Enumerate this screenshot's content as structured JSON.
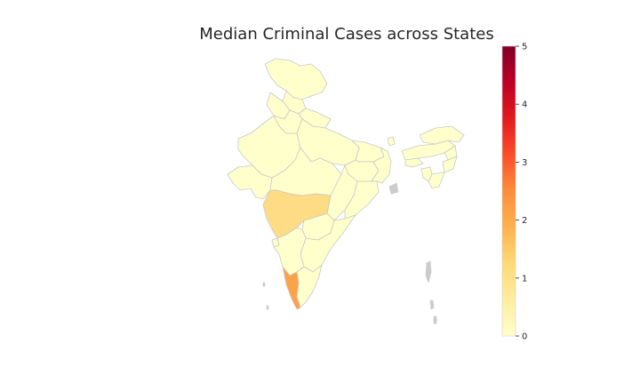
{
  "title": "Median Criminal Cases across States",
  "colorbar": {
    "ticks": [
      "0",
      "1",
      "2",
      "3",
      "4",
      "5"
    ],
    "min": 0,
    "max": 5,
    "colormap": "YlOrRd",
    "stops": [
      "#ffffcc",
      "#ffeda0",
      "#fed976",
      "#feb24c",
      "#fd8d3c",
      "#fc4e2a",
      "#e31a1c",
      "#bd0026",
      "#800026"
    ]
  },
  "colors": {
    "border": "#c8c8c8",
    "no_data": "#cccccc",
    "highlight_maharashtra": "#fedc86",
    "highlight_kerala": "#fda248"
  },
  "regions": [
    {
      "state": "Maharashtra",
      "value": 1.0
    },
    {
      "state": "Kerala",
      "value": 2.0
    },
    {
      "state": "Others",
      "value": 0.0
    }
  ]
}
